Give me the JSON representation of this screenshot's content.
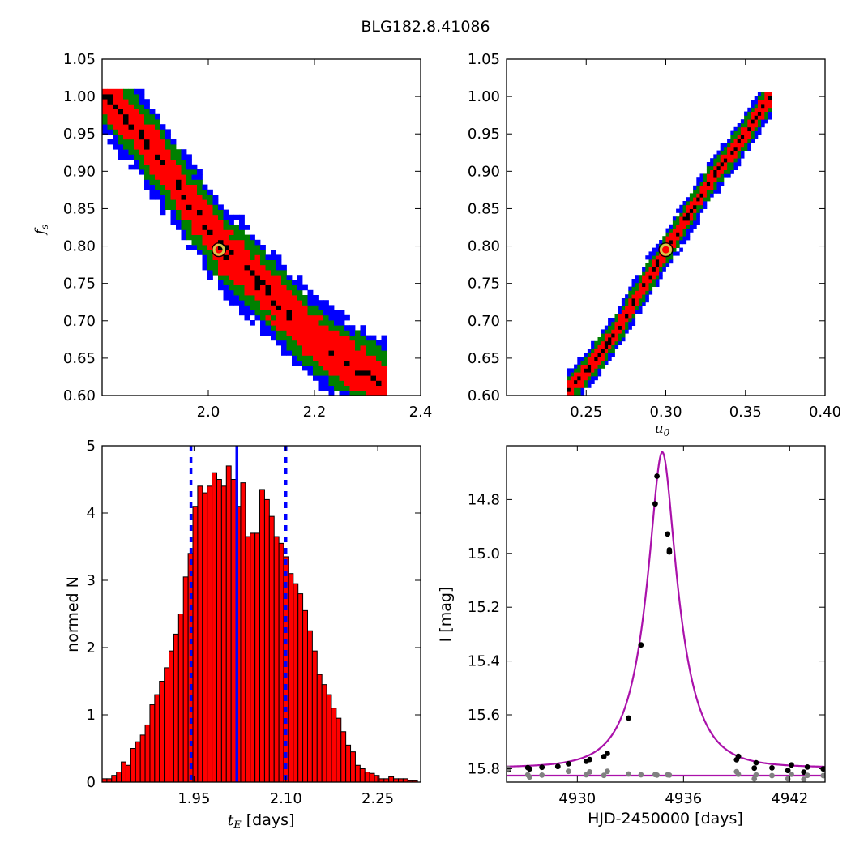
{
  "figure_title": "BLG182.8.41086",
  "colors": {
    "blue": "#0000ff",
    "green": "#008000",
    "red": "#ff0000",
    "black": "#000000",
    "yellow": "#d4c84a",
    "magenta": "#aa11aa",
    "gray": "#808080",
    "bar_red": "#ff0000",
    "dash_blue": "#0000ff"
  },
  "chart_data": [
    {
      "id": "fs_vs_tE",
      "type": "heatmap",
      "title": "",
      "xlabel": "",
      "ylabel_symbol": "f",
      "ylabel_sub": "s",
      "xlim": [
        1.8,
        2.4
      ],
      "ylim": [
        0.6,
        1.05
      ],
      "xticks": [
        "2.0",
        "2.2",
        "2.4"
      ],
      "xtick_values": [
        2.0,
        2.2,
        2.4
      ],
      "yticks": [
        "0.60",
        "0.65",
        "0.70",
        "0.75",
        "0.80",
        "0.85",
        "0.90",
        "0.95",
        "1.00",
        "1.05"
      ],
      "ytick_values": [
        0.6,
        0.65,
        0.7,
        0.75,
        0.8,
        0.85,
        0.9,
        0.95,
        1.0,
        1.05
      ],
      "ridge": [
        [
          1.8,
          1.0
        ],
        [
          1.86,
          0.955
        ],
        [
          1.92,
          0.895
        ],
        [
          1.98,
          0.835
        ],
        [
          2.02,
          0.795
        ],
        [
          2.08,
          0.755
        ],
        [
          2.14,
          0.71
        ],
        [
          2.2,
          0.67
        ],
        [
          2.26,
          0.64
        ],
        [
          2.33,
          0.61
        ]
      ],
      "best_fit": {
        "x": 2.02,
        "y": 0.795
      },
      "regions": [
        "blue",
        "green",
        "red",
        "black"
      ]
    },
    {
      "id": "fs_vs_u0",
      "type": "heatmap",
      "title": "",
      "xlabel_symbol": "u",
      "xlabel_sub": "0",
      "ylabel": "",
      "xlim": [
        0.2,
        0.4
      ],
      "ylim": [
        0.6,
        1.05
      ],
      "xticks": [
        "0.25",
        "0.30",
        "0.35",
        "0.40"
      ],
      "xtick_values": [
        0.25,
        0.3,
        0.35,
        0.4
      ],
      "yticks": [
        "0.60",
        "0.65",
        "0.70",
        "0.75",
        "0.80",
        "0.85",
        "0.90",
        "0.95",
        "1.00",
        "1.05"
      ],
      "ytick_values": [
        0.6,
        0.65,
        0.7,
        0.75,
        0.8,
        0.85,
        0.9,
        0.95,
        1.0,
        1.05
      ],
      "ridge": [
        [
          0.238,
          0.605
        ],
        [
          0.255,
          0.645
        ],
        [
          0.27,
          0.69
        ],
        [
          0.285,
          0.745
        ],
        [
          0.3,
          0.795
        ],
        [
          0.315,
          0.845
        ],
        [
          0.33,
          0.895
        ],
        [
          0.345,
          0.935
        ],
        [
          0.365,
          1.0
        ]
      ],
      "best_fit": {
        "x": 0.3,
        "y": 0.795
      },
      "regions": [
        "blue",
        "green",
        "red",
        "black"
      ]
    },
    {
      "id": "tE_hist",
      "type": "bar",
      "title": "",
      "xlabel_symbol": "t",
      "xlabel_sub": "E",
      "xlabel_rest": " [days]",
      "ylabel": "normed N",
      "xlim": [
        1.8,
        2.32
      ],
      "ylim": [
        0,
        5
      ],
      "xticks": [
        "1.95",
        "2.10",
        "2.25"
      ],
      "xtick_values": [
        1.95,
        2.1,
        2.25
      ],
      "yticks": [
        "0",
        "1",
        "2",
        "3",
        "4",
        "5"
      ],
      "ytick_values": [
        0,
        1,
        2,
        3,
        4,
        5
      ],
      "bin_start": 1.8,
      "bin_width": 0.0078,
      "values": [
        0.05,
        0.05,
        0.1,
        0.15,
        0.3,
        0.25,
        0.5,
        0.6,
        0.7,
        0.85,
        1.15,
        1.3,
        1.5,
        1.7,
        1.95,
        2.2,
        2.5,
        3.05,
        3.4,
        4.1,
        4.4,
        4.3,
        4.4,
        4.6,
        4.5,
        4.4,
        4.7,
        4.5,
        4.1,
        4.45,
        3.65,
        3.7,
        3.7,
        4.35,
        4.2,
        3.95,
        3.65,
        3.55,
        3.35,
        3.1,
        2.95,
        2.8,
        2.55,
        2.25,
        1.95,
        1.6,
        1.45,
        1.3,
        1.1,
        0.95,
        0.75,
        0.55,
        0.45,
        0.25,
        0.2,
        0.15,
        0.13,
        0.1,
        0.05,
        0.05,
        0.08,
        0.05,
        0.05,
        0.05,
        0.02,
        0.02
      ],
      "median": 2.02,
      "lower": 1.945,
      "upper": 2.1
    },
    {
      "id": "light_curve",
      "type": "scatter",
      "title": "",
      "xlabel": "HJD-2450000 [days]",
      "ylabel": "I [mag]",
      "xlim": [
        4926,
        4944
      ],
      "ylim": [
        15.85,
        14.6
      ],
      "xticks": [
        "4930",
        "4936",
        "4942"
      ],
      "xtick_values": [
        4930,
        4936,
        4942
      ],
      "yticks": [
        "14.8",
        "15.0",
        "15.2",
        "15.4",
        "15.6",
        "15.8"
      ],
      "ytick_values": [
        14.8,
        15.0,
        15.2,
        15.4,
        15.6,
        15.8
      ],
      "model": {
        "t0": 4934.8,
        "tE": 2.02,
        "u0": 0.3,
        "fs": 0.795,
        "base_mag": 15.796
      },
      "baseline_mag": 15.826,
      "series": [
        {
          "color": "black",
          "points": [
            [
              4926.1,
              15.804
            ],
            [
              4927.2,
              15.796
            ],
            [
              4927.3,
              15.801
            ],
            [
              4928.0,
              15.795
            ],
            [
              4928.9,
              15.792
            ],
            [
              4929.5,
              15.782
            ],
            [
              4930.5,
              15.773
            ],
            [
              4930.7,
              15.766
            ],
            [
              4931.5,
              15.755
            ],
            [
              4931.7,
              15.743
            ],
            [
              4932.9,
              15.612
            ],
            [
              4933.6,
              15.34
            ],
            [
              4934.4,
              14.816
            ],
            [
              4934.5,
              14.713
            ],
            [
              4935.1,
              14.928
            ],
            [
              4935.2,
              14.987
            ],
            [
              4935.2,
              14.995
            ],
            [
              4939.0,
              15.767
            ],
            [
              4939.1,
              15.754
            ],
            [
              4940.0,
              15.798
            ],
            [
              4940.1,
              15.778
            ],
            [
              4941.0,
              15.797
            ],
            [
              4941.9,
              15.807
            ],
            [
              4942.1,
              15.786
            ],
            [
              4942.8,
              15.813
            ],
            [
              4943.0,
              15.794
            ],
            [
              4943.9,
              15.801
            ]
          ]
        },
        {
          "color": "gray",
          "points": [
            [
              4926.1,
              15.8
            ],
            [
              4927.2,
              15.823
            ],
            [
              4927.3,
              15.831
            ],
            [
              4928.0,
              15.824
            ],
            [
              4929.5,
              15.81
            ],
            [
              4930.5,
              15.823
            ],
            [
              4930.7,
              15.812
            ],
            [
              4931.5,
              15.825
            ],
            [
              4931.7,
              15.81
            ],
            [
              4932.9,
              15.82
            ],
            [
              4933.6,
              15.823
            ],
            [
              4934.4,
              15.822
            ],
            [
              4934.5,
              15.824
            ],
            [
              4935.1,
              15.823
            ],
            [
              4935.2,
              15.824
            ],
            [
              4939.0,
              15.811
            ],
            [
              4939.1,
              15.821
            ],
            [
              4940.0,
              15.838
            ],
            [
              4940.1,
              15.823
            ],
            [
              4941.0,
              15.826
            ],
            [
              4941.9,
              15.838
            ],
            [
              4942.1,
              15.821
            ],
            [
              4942.8,
              15.84
            ],
            [
              4943.0,
              15.825
            ],
            [
              4943.9,
              15.826
            ]
          ]
        }
      ]
    }
  ]
}
